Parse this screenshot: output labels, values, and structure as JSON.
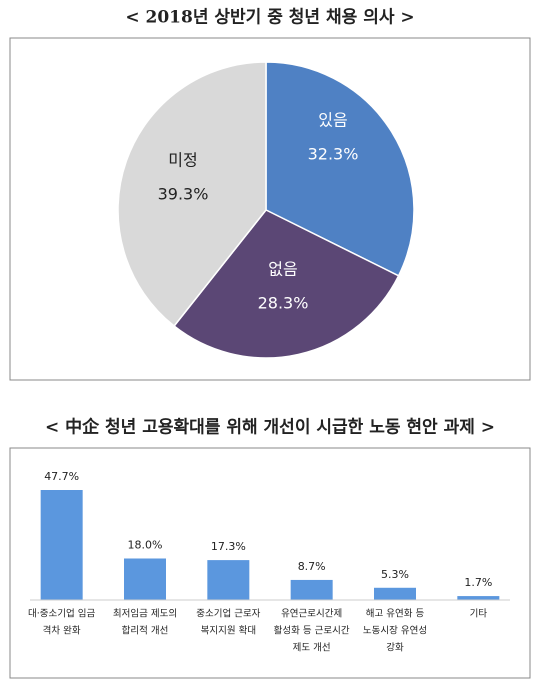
{
  "chart_data": [
    {
      "type": "pie",
      "title": "< 2018년 상반기 중 청년 채용 의사 >",
      "categories": [
        "있음",
        "없음",
        "미정"
      ],
      "values": [
        32.3,
        28.3,
        39.3
      ],
      "value_labels": [
        "32.3%",
        "28.3%",
        "39.3%"
      ],
      "colors": [
        "#4f81c4",
        "#5b4775",
        "#d9d9d9"
      ]
    },
    {
      "type": "bar",
      "title": "< 中企 청년 고용확대를 위해 개선이 시급한 노동 현안 과제 >",
      "categories": [
        [
          "대·중소기업 임금",
          "격차 완화"
        ],
        [
          "최저임금 제도의",
          "합리적 개선"
        ],
        [
          "중소기업 근로자",
          "복지지원 확대"
        ],
        [
          "유연근로시간제",
          "활성화 등 근로시간",
          "제도 개선"
        ],
        [
          "해고 유연화 등",
          "노동시장 유연성",
          "강화"
        ],
        [
          "기타"
        ]
      ],
      "values": [
        47.7,
        18.0,
        17.3,
        8.7,
        5.3,
        1.7
      ],
      "value_labels": [
        "47.7%",
        "18.0%",
        "17.3%",
        "8.7%",
        "5.3%",
        "1.7%"
      ],
      "color": "#5b97de"
    }
  ]
}
